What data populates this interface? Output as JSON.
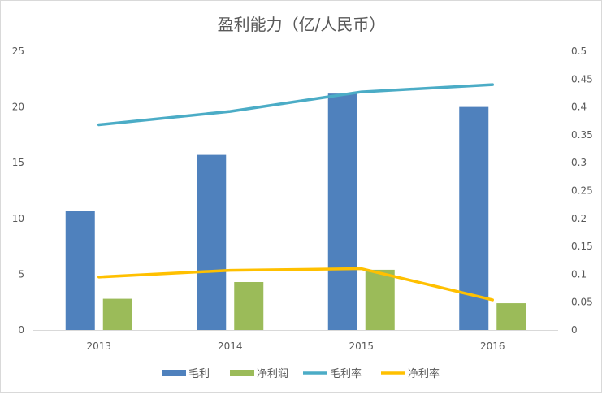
{
  "chart_data": {
    "type": "bar",
    "title": "盈利能力（亿/人民币）",
    "categories": [
      "2013",
      "2014",
      "2015",
      "2016"
    ],
    "y_left": {
      "min": 0,
      "max": 25,
      "ticks": [
        "0",
        "5",
        "10",
        "15",
        "20",
        "25"
      ]
    },
    "y_right": {
      "min": 0,
      "max": 0.5,
      "ticks": [
        "0",
        "0.05",
        "0.1",
        "0.15",
        "0.2",
        "0.25",
        "0.3",
        "0.35",
        "0.4",
        "0.45",
        "0.5"
      ]
    },
    "series": [
      {
        "name": "毛利",
        "kind": "bar",
        "axis": "left",
        "color": "#4f81bd",
        "values": [
          10.7,
          15.7,
          21.2,
          20.0
        ]
      },
      {
        "name": "净利润",
        "kind": "bar",
        "axis": "left",
        "color": "#9bbb59",
        "values": [
          2.8,
          4.3,
          5.4,
          2.4
        ]
      },
      {
        "name": "毛利率",
        "kind": "line",
        "axis": "right",
        "color": "#4bacc6",
        "values": [
          0.368,
          0.392,
          0.427,
          0.44
        ]
      },
      {
        "name": "净利率",
        "kind": "line",
        "axis": "right",
        "color": "#ffc000",
        "values": [
          0.095,
          0.107,
          0.11,
          0.054
        ]
      }
    ],
    "grid": false,
    "legend": "bottom"
  }
}
